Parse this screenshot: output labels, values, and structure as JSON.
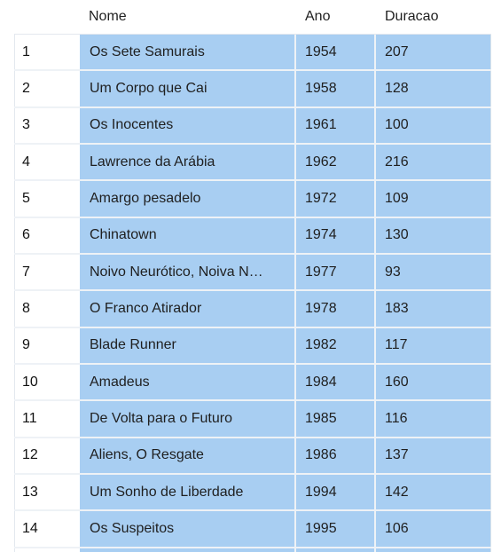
{
  "table": {
    "columns": {
      "name": "Nome",
      "year": "Ano",
      "duration": "Duracao"
    },
    "rows": [
      {
        "index": "1",
        "name": "Os Sete Samurais",
        "year": "1954",
        "duration": "207"
      },
      {
        "index": "2",
        "name": "Um Corpo que Cai",
        "year": "1958",
        "duration": "128"
      },
      {
        "index": "3",
        "name": "Os Inocentes",
        "year": "1961",
        "duration": "100"
      },
      {
        "index": "4",
        "name": "Lawrence da Arábia",
        "year": "1962",
        "duration": "216"
      },
      {
        "index": "5",
        "name": "Amargo pesadelo",
        "year": "1972",
        "duration": "109"
      },
      {
        "index": "6",
        "name": "Chinatown",
        "year": "1974",
        "duration": "130"
      },
      {
        "index": "7",
        "name": "Noivo Neurótico, Noiva N…",
        "year": "1977",
        "duration": "93"
      },
      {
        "index": "8",
        "name": "O Franco Atirador",
        "year": "1978",
        "duration": "183"
      },
      {
        "index": "9",
        "name": "Blade Runner",
        "year": "1982",
        "duration": "117"
      },
      {
        "index": "10",
        "name": "Amadeus",
        "year": "1984",
        "duration": "160"
      },
      {
        "index": "11",
        "name": "De Volta para o Futuro",
        "year": "1985",
        "duration": "116"
      },
      {
        "index": "12",
        "name": "Aliens, O Resgate",
        "year": "1986",
        "duration": "137"
      },
      {
        "index": "13",
        "name": "Um Sonho de Liberdade",
        "year": "1994",
        "duration": "142"
      },
      {
        "index": "14",
        "name": "Os Suspeitos",
        "year": "1995",
        "duration": "106"
      }
    ]
  }
}
